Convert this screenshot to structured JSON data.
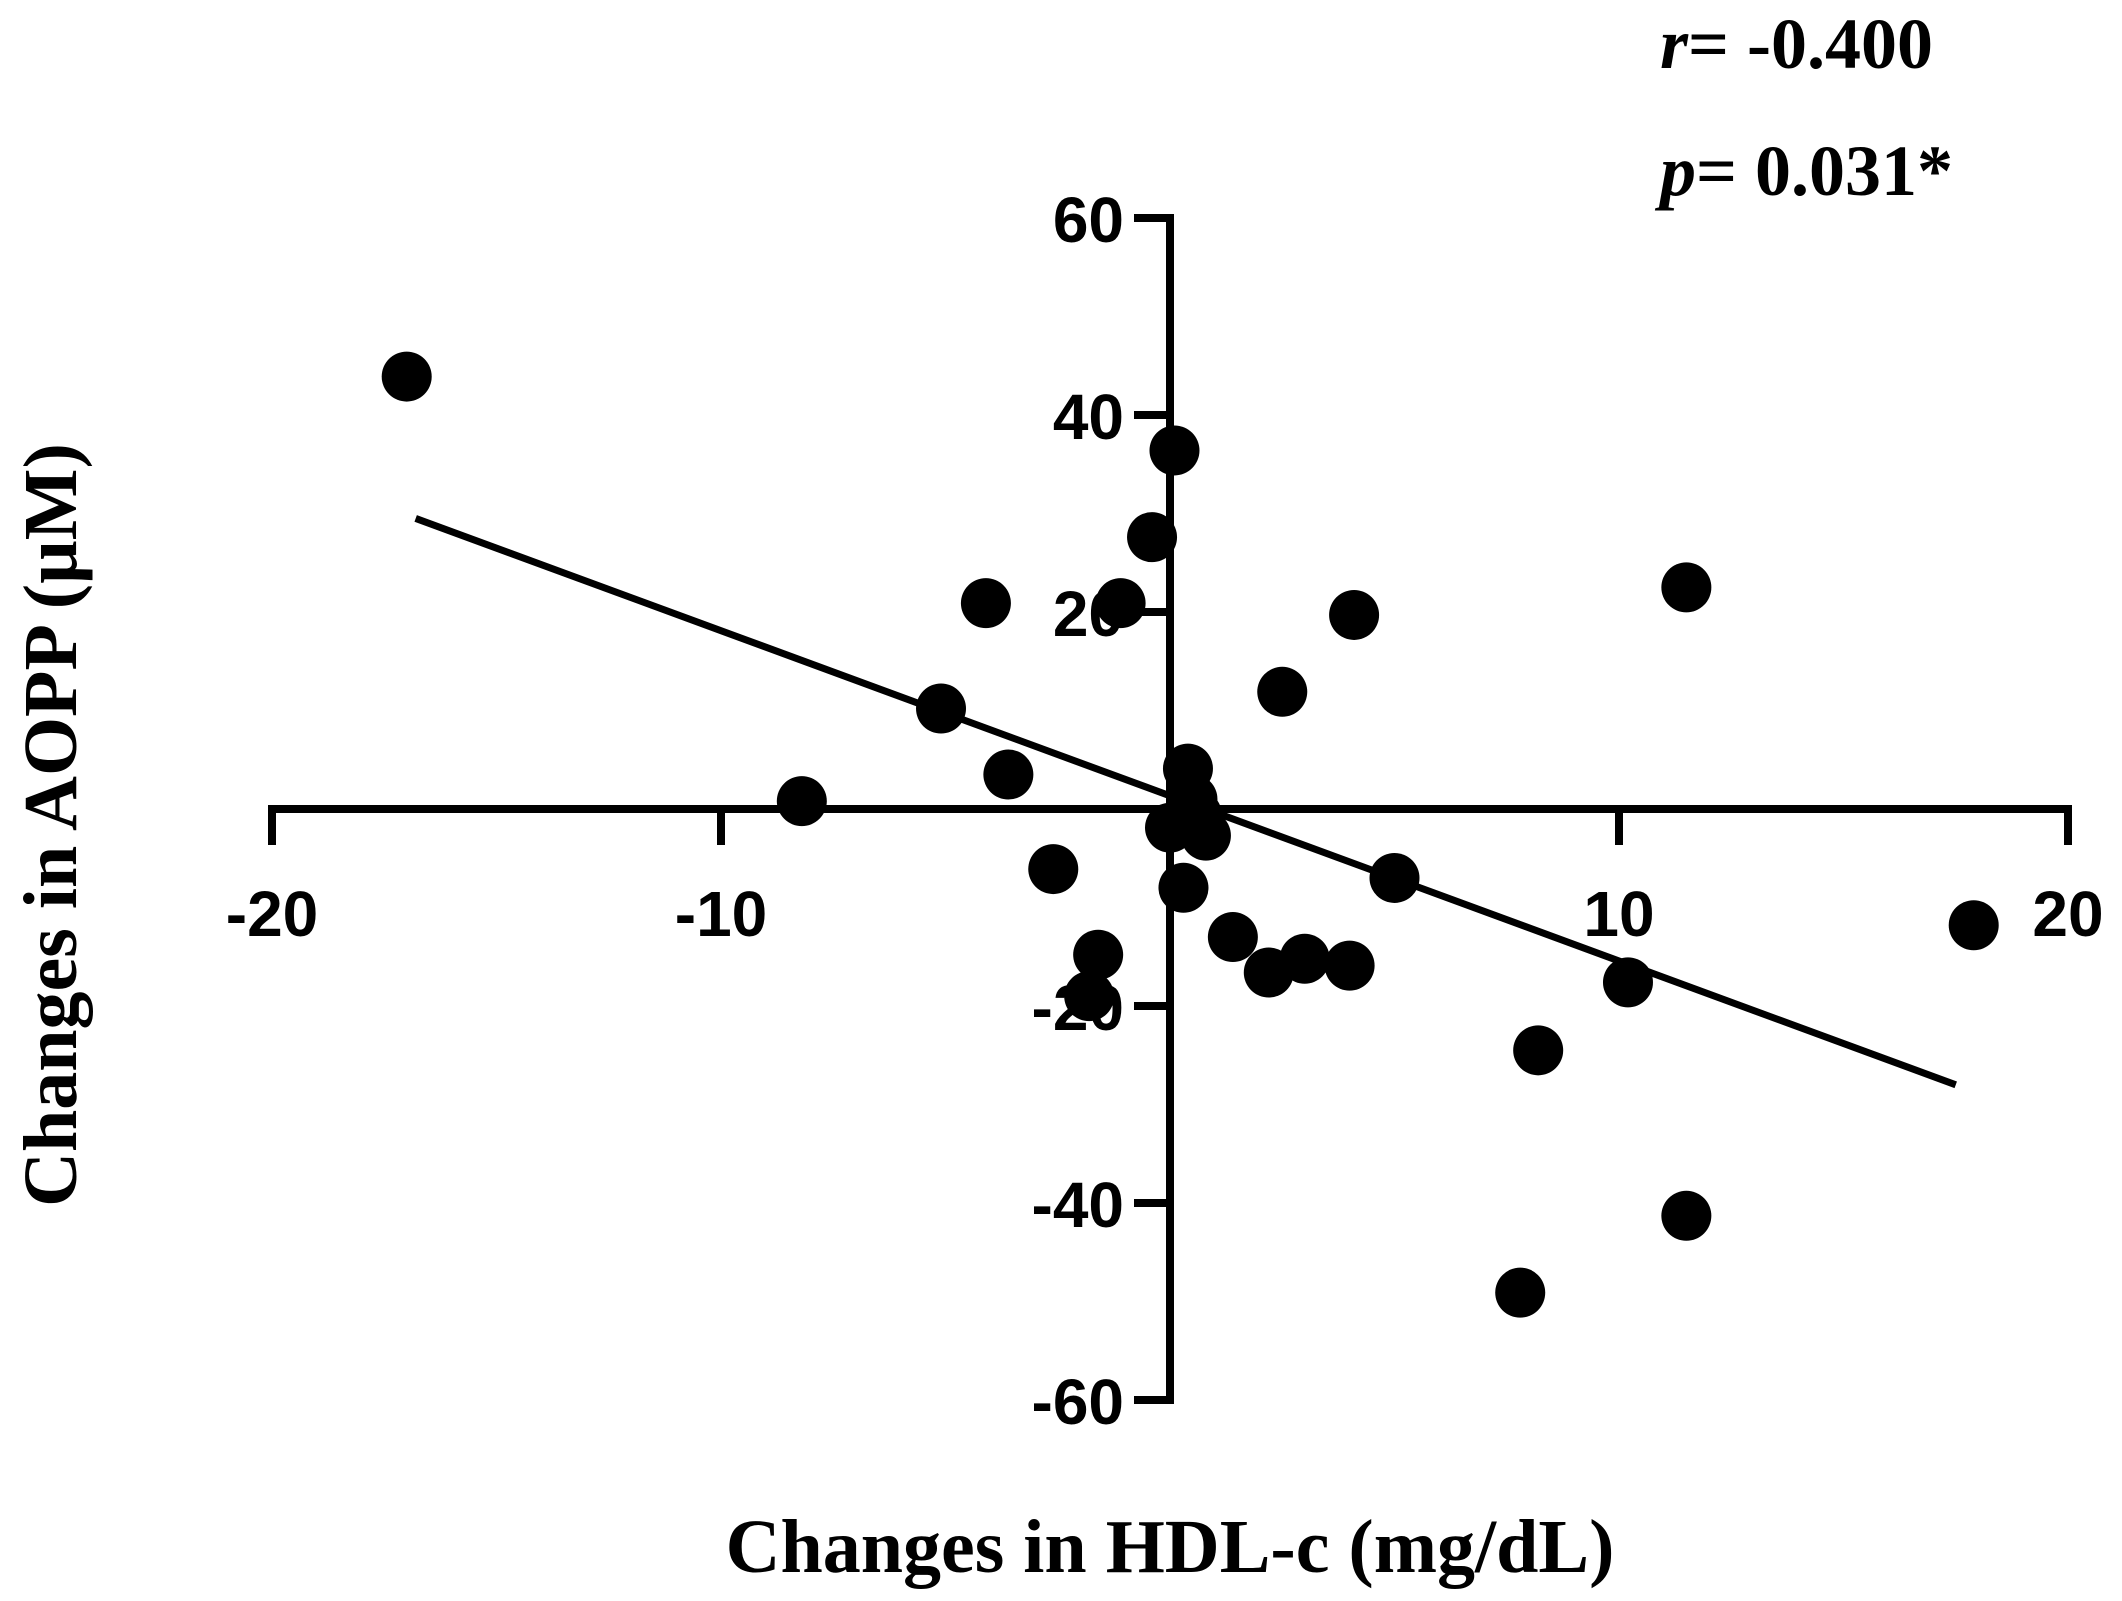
{
  "chart_data": {
    "type": "scatter",
    "title": "",
    "xlabel": "Changes in HDL-c (mg/dL)",
    "ylabel": "Changes in AOPP (µM)",
    "xlim": [
      -20,
      20
    ],
    "ylim": [
      -60,
      60
    ],
    "x_ticks": [
      -20,
      -10,
      10,
      20
    ],
    "y_ticks": [
      60,
      40,
      20,
      -20,
      -40,
      -60
    ],
    "x_tick_labels": [
      "-20",
      "-10",
      "10",
      "20"
    ],
    "y_tick_labels": [
      "60",
      "40",
      "20",
      "-20",
      "-40",
      "-60"
    ],
    "grid": false,
    "legend": "none",
    "annotation": {
      "r_symbol": "r",
      "r_text": "= -0.400",
      "p_symbol": "p",
      "p_text": "= 0.031*"
    },
    "trendline": {
      "x": [
        -16.8,
        17.5
      ],
      "y": [
        29.5,
        -28.0
      ]
    },
    "points": [
      {
        "x": -17.0,
        "y": 43.9
      },
      {
        "x": -8.2,
        "y": 0.8
      },
      {
        "x": -5.1,
        "y": 10.2
      },
      {
        "x": -4.1,
        "y": 20.9
      },
      {
        "x": -3.6,
        "y": 3.5
      },
      {
        "x": -2.6,
        "y": -6.1
      },
      {
        "x": -1.8,
        "y": -19.0
      },
      {
        "x": -1.6,
        "y": -14.8
      },
      {
        "x": -1.1,
        "y": 20.9
      },
      {
        "x": -0.4,
        "y": 27.6
      },
      {
        "x": 0.1,
        "y": 36.4
      },
      {
        "x": 0.0,
        "y": -1.9
      },
      {
        "x": 0.4,
        "y": 4.1
      },
      {
        "x": 0.5,
        "y": 1.0
      },
      {
        "x": 0.6,
        "y": -0.6
      },
      {
        "x": 0.8,
        "y": -2.7
      },
      {
        "x": 0.3,
        "y": -8.0
      },
      {
        "x": 1.4,
        "y": -13.0
      },
      {
        "x": 2.2,
        "y": -16.6
      },
      {
        "x": 2.5,
        "y": 11.9
      },
      {
        "x": 3.0,
        "y": -15.2
      },
      {
        "x": 4.0,
        "y": -15.9
      },
      {
        "x": 4.1,
        "y": 19.7
      },
      {
        "x": 5.0,
        "y": -7.0
      },
      {
        "x": 7.8,
        "y": -49.1
      },
      {
        "x": 8.2,
        "y": -24.5
      },
      {
        "x": 10.2,
        "y": -17.6
      },
      {
        "x": 11.5,
        "y": 22.5
      },
      {
        "x": 11.5,
        "y": -41.3
      },
      {
        "x": 17.9,
        "y": -11.8
      }
    ]
  }
}
